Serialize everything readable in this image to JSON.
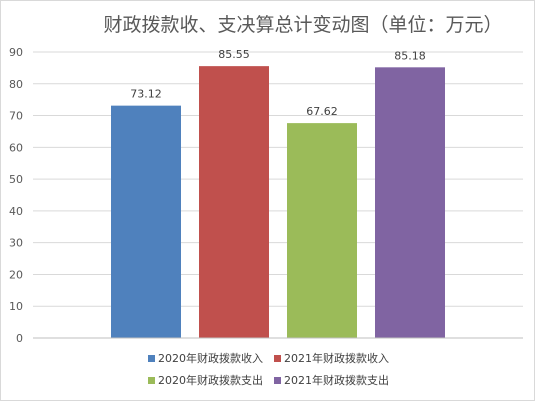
{
  "chart_data": {
    "type": "bar",
    "title": "财政拨款收、支决算总计变动图（单位：万元）",
    "xlabel": "",
    "ylabel": "",
    "ylim": [
      0,
      90
    ],
    "yticks": [
      0,
      10,
      20,
      30,
      40,
      50,
      60,
      70,
      80,
      90
    ],
    "grid": true,
    "legend_position": "bottom",
    "categories": [
      "2020年财政拨款收入",
      "2021年财政拨款收入",
      "2020年财政拨款支出",
      "2021年财政拨款支出"
    ],
    "values": [
      73.12,
      85.55,
      67.62,
      85.18
    ],
    "value_labels": [
      "73.12",
      "85.55",
      "67.62",
      "85.18"
    ],
    "colors": [
      "#4f81bd",
      "#c0504d",
      "#9bbb59",
      "#8064a2"
    ]
  },
  "colors": {
    "grid": "#d9d9d9",
    "axis": "#bfbfbf",
    "text": "#595959"
  }
}
